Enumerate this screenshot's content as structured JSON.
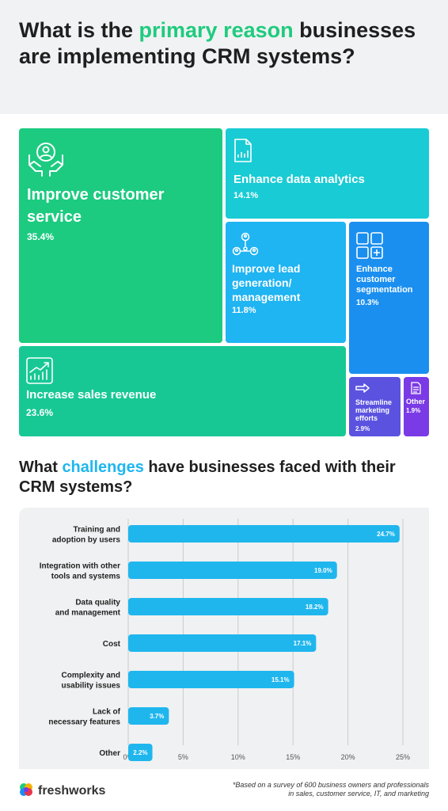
{
  "header": {
    "title_pre": "What is the ",
    "title_highlight": "primary reason",
    "title_post": " businesses are implementing CRM systems?"
  },
  "treemap": {
    "tiles": [
      {
        "label": "Improve customer service",
        "value": "35.4%",
        "color": "#1ccb80",
        "icon": "hands-person-icon"
      },
      {
        "label": "Enhance data analytics",
        "value": "14.1%",
        "color": "#19cbd4",
        "icon": "report-chart-icon"
      },
      {
        "label": "Improve lead generation/ management",
        "value": "11.8%",
        "color": "#1fb4f2",
        "icon": "network-people-icon"
      },
      {
        "label": "Enhance customer segmentation",
        "value": "10.3%",
        "color": "#1a8ff0",
        "icon": "grid-plus-icon"
      },
      {
        "label": "Increase sales revenue",
        "value": "23.6%",
        "color": "#17c895",
        "icon": "growth-chart-icon"
      },
      {
        "label": "Streamline marketing efforts",
        "value": "2.9%",
        "color": "#5b53e0",
        "icon": "arrow-right-icon"
      },
      {
        "label": "Other",
        "value": "1.9%",
        "color": "#7a3ae6",
        "icon": "document-icon"
      }
    ]
  },
  "challenges": {
    "title_pre": "What ",
    "title_highlight": "challenges",
    "title_post": " have businesses faced with their CRM systems?"
  },
  "chart_data": {
    "type": "bar",
    "orientation": "horizontal",
    "categories": [
      [
        "Training and",
        "adoption by users"
      ],
      [
        "Integration with other",
        "tools and systems"
      ],
      [
        "Data quality",
        "and management"
      ],
      [
        "Cost"
      ],
      [
        "Complexity and",
        "usability issues"
      ],
      [
        "Lack of",
        "necessary features"
      ],
      [
        "Other"
      ]
    ],
    "values": [
      24.7,
      19.0,
      18.2,
      17.1,
      15.1,
      3.7,
      2.2
    ],
    "value_labels": [
      "24.7%",
      "19.0%",
      "18.2%",
      "17.1%",
      "15.1%",
      "3.7%",
      "2.2%"
    ],
    "xlim": [
      0,
      25
    ],
    "xticks": [
      0,
      5,
      10,
      15,
      20,
      25
    ],
    "xtick_labels": [
      "0%",
      "5%",
      "10%",
      "15%",
      "20%",
      "25%"
    ],
    "bar_color": "#1fb6ee",
    "grid": true
  },
  "footer": {
    "brand": "freshworks",
    "footnote_line1": "*Based on a survey of 600 business owners and professionals",
    "footnote_line2": "in sales, customer service, IT, and marketing"
  }
}
